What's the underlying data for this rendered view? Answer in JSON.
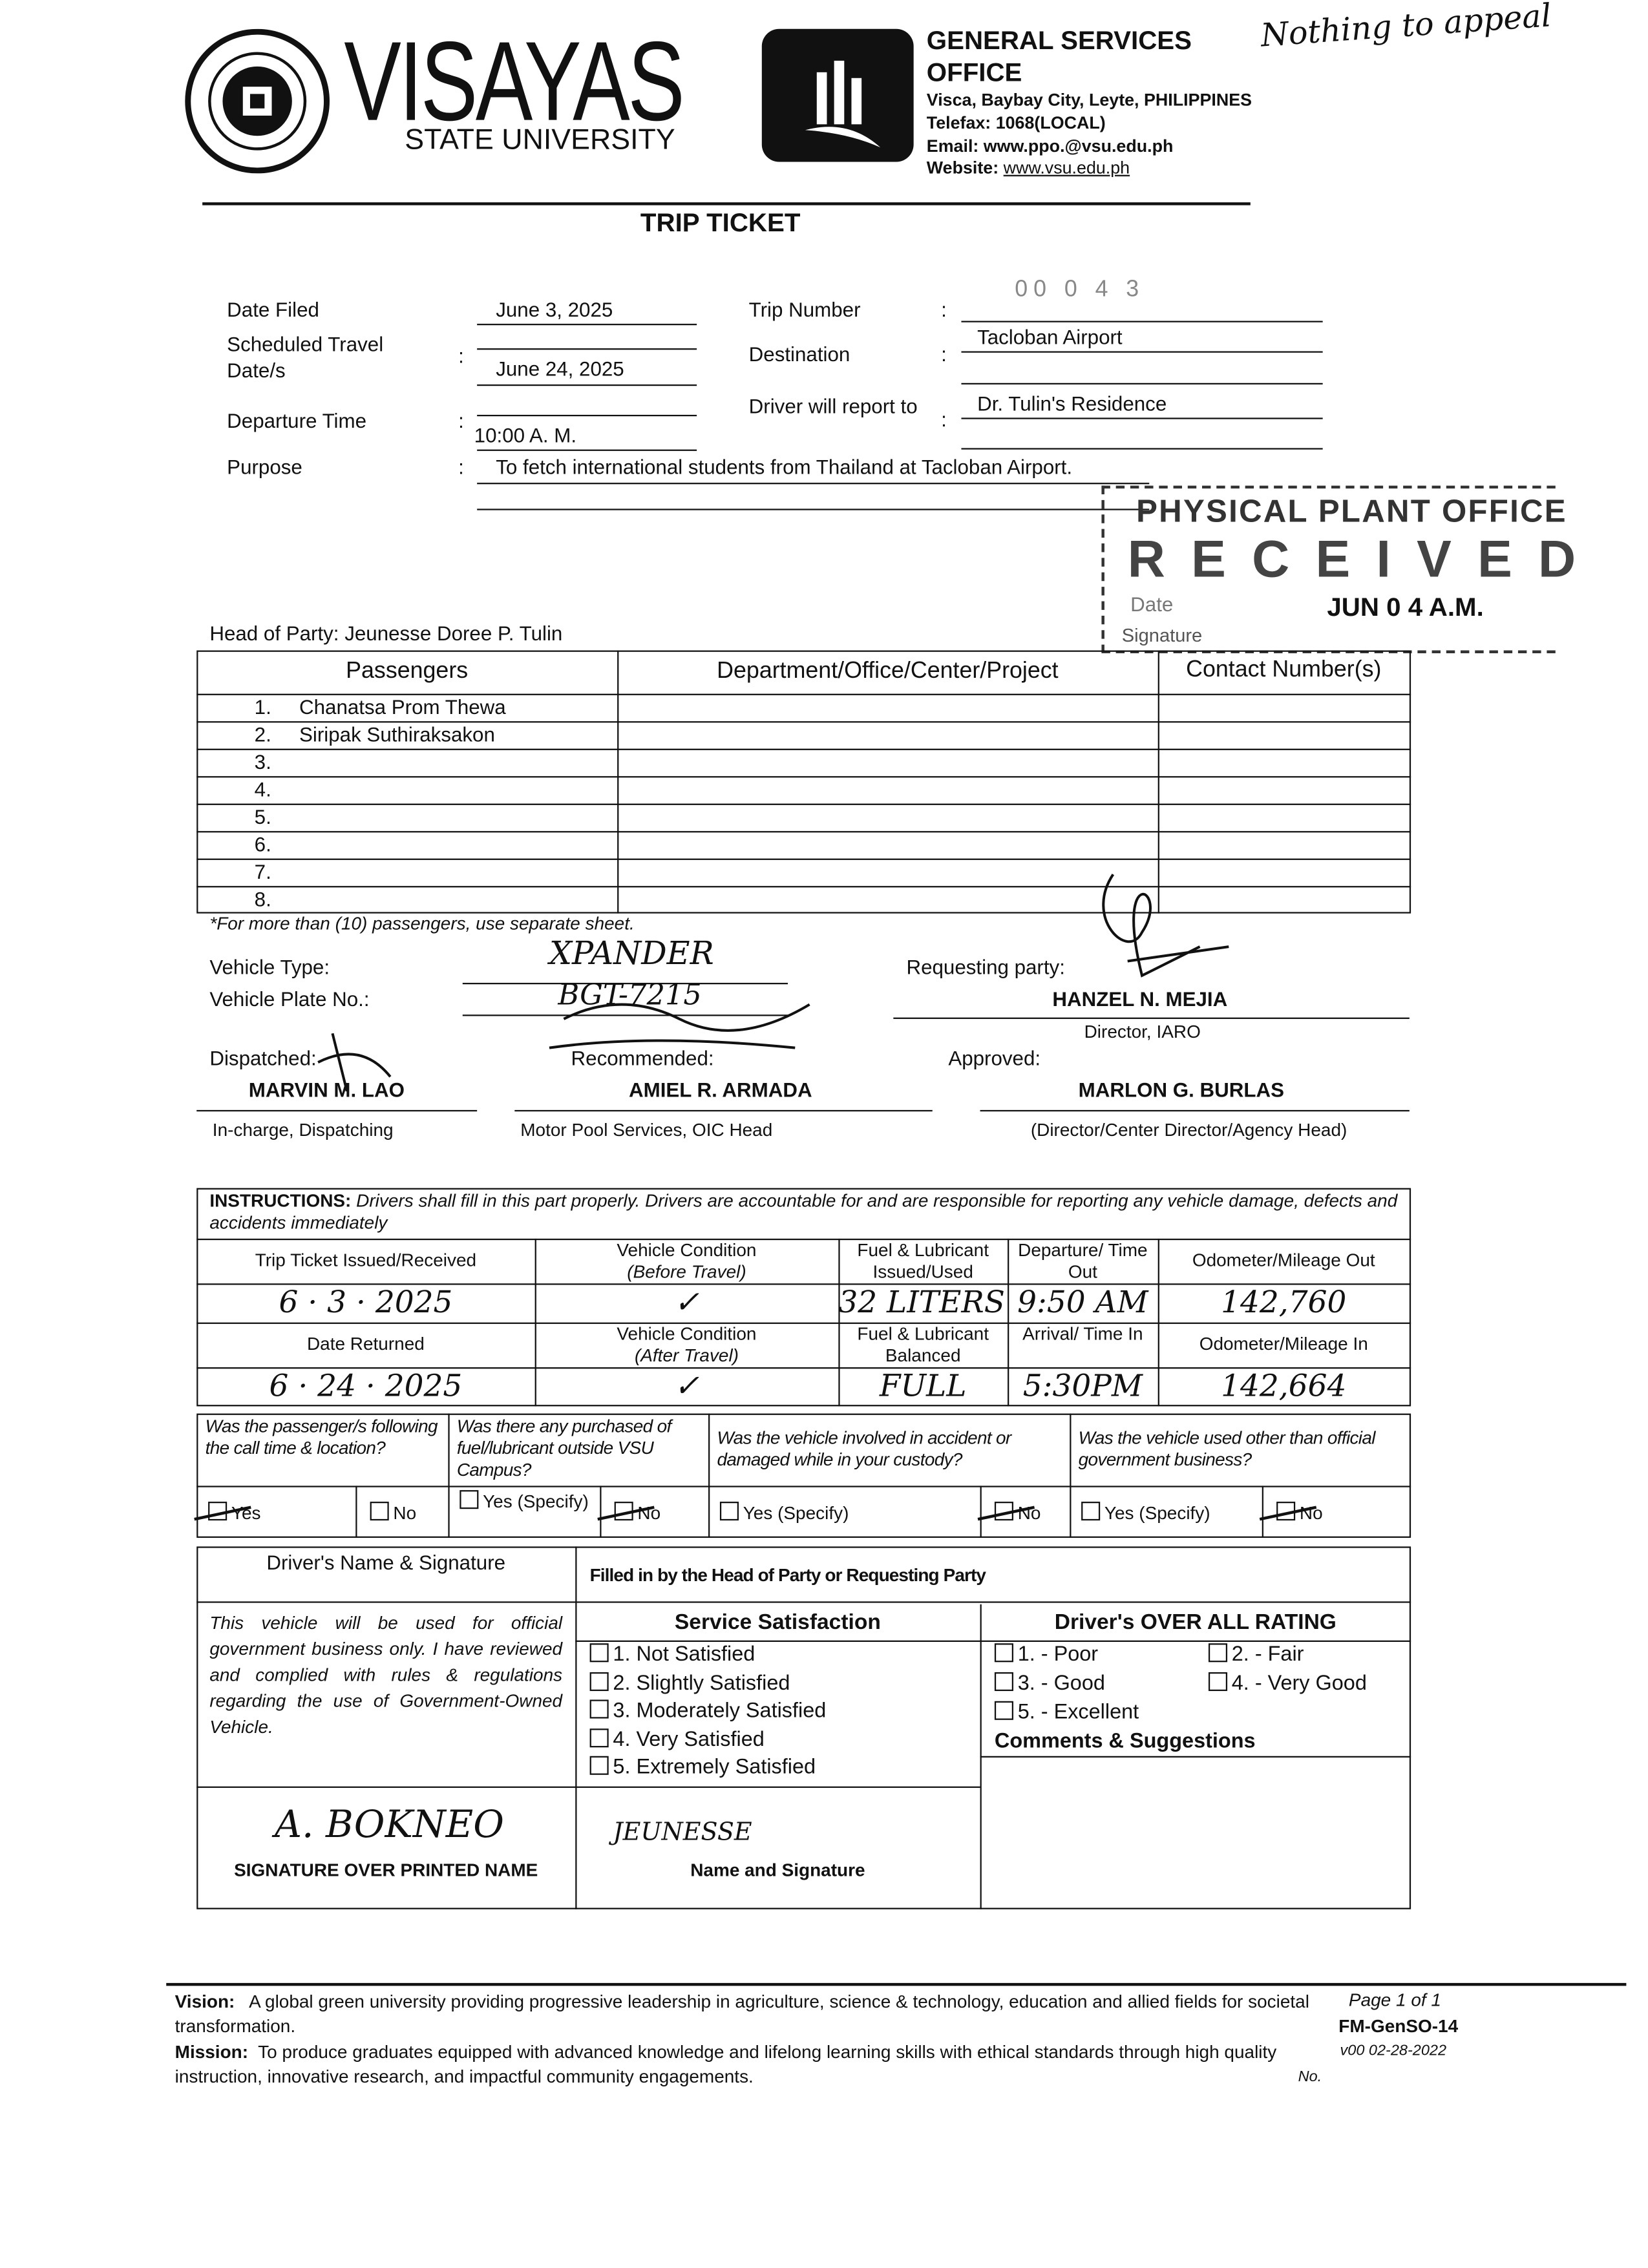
{
  "header": {
    "university_name": "VISAYAS",
    "university_sub": "STATE UNIVERSITY",
    "seal_text": "VISAYAS STATE UNIVERSITY",
    "office_line1": "GENERAL SERVICES",
    "office_line2": "OFFICE",
    "address": "Visca, Baybay City, Leyte, PHILIPPINES",
    "telefax": "Telefax: 1068(LOCAL)",
    "email": "Email: www.ppo.@vsu.edu.ph",
    "website_label": "Website:",
    "website": "www.vsu.edu.ph",
    "handwritten_note": "Nothing to appeal"
  },
  "title": "TRIP TICKET",
  "fields": {
    "date_filed_label": "Date Filed",
    "date_filed": "June 3, 2025",
    "travel_date_label": "Scheduled Travel Date/s",
    "travel_date": "June 24, 2025",
    "departure_label": "Departure Time",
    "departure": "10:00 A. M.",
    "purpose_label": "Purpose",
    "purpose": "To fetch international students from Thailand at Tacloban Airport.",
    "trip_number_label": "Trip Number",
    "trip_number": "00 0 4 3",
    "destination_label": "Destination",
    "destination": "Tacloban Airport",
    "report_label": "Driver will report to",
    "report_to": "Dr. Tulin's Residence",
    "colon": ":"
  },
  "stamp": {
    "office": "PHYSICAL PLANT OFFICE",
    "status": "RECEIVED",
    "date_label": "Date",
    "date": "JUN 0 4 A.M.",
    "signature_label": "Signature"
  },
  "head_of_party": "Head of Party:  Jeunesse Doree P. Tulin",
  "passengers": {
    "headers": [
      "Passengers",
      "Department/Office/Center/Project",
      "Contact Number(s)"
    ],
    "rows": [
      {
        "num": "1.",
        "name": "Chanatsa Prom Thewa"
      },
      {
        "num": "2.",
        "name": "Siripak Suthiraksakon"
      },
      {
        "num": "3.",
        "name": ""
      },
      {
        "num": "4.",
        "name": ""
      },
      {
        "num": "5.",
        "name": ""
      },
      {
        "num": "6.",
        "name": ""
      },
      {
        "num": "7.",
        "name": ""
      },
      {
        "num": "8.",
        "name": ""
      }
    ],
    "note": "*For more than (10) passengers, use separate sheet."
  },
  "vehicle": {
    "type_label": "Vehicle Type:",
    "type": "XPANDER",
    "plate_label": "Vehicle Plate No.:",
    "plate": "BGT-7215"
  },
  "signatories": {
    "requesting_label": "Requesting party:",
    "requesting_name": "HANZEL N. MEJIA",
    "requesting_title": "Director, IARO",
    "dispatched_label": "Dispatched:",
    "dispatched_name": "MARVIN M. LAO",
    "dispatched_title": "In-charge, Dispatching",
    "recommended_label": "Recommended:",
    "recommended_name": "AMIEL R. ARMADA",
    "recommended_title": "Motor Pool Services, OIC Head",
    "approved_label": "Approved:",
    "approved_name": "MARLON G. BURLAS",
    "approved_title": "(Director/Center Director/Agency Head)"
  },
  "instructions": {
    "label": "INSTRUCTIONS:",
    "text": "Drivers shall fill in this part properly.  Drivers are accountable for and are responsible for reporting any vehicle damage, defects and accidents immediately",
    "out_headers": [
      "Trip Ticket Issued/Received",
      "Vehicle Condition",
      "(Before Travel)",
      "Fuel & Lubricant Issued/Used",
      "Departure/ Time Out",
      "Odometer/Mileage Out"
    ],
    "out_values": [
      "6 · 3 · 2025",
      "✓",
      "32 LITERS 6.",
      "9:50 AM",
      "142,760"
    ],
    "in_headers": [
      "Date Returned",
      "Vehicle Condition",
      "(After Travel)",
      "Fuel & Lubricant Balanced",
      "Arrival/ Time In",
      "Odometer/Mileage In"
    ],
    "in_values": [
      "6 · 24 · 2025",
      "✓",
      "FULL",
      "5:30PM",
      "142,664"
    ]
  },
  "questions": [
    {
      "q": "Was the passenger/s following the call time & location?",
      "yes": "Yes",
      "no": "No",
      "answer": "yes"
    },
    {
      "q": "Was there any purchased of fuel/lubricant outside VSU Campus?",
      "yes": "Yes (Specify)",
      "no": "No",
      "answer": "no"
    },
    {
      "q": "Was the vehicle involved in accident or damaged while in your custody?",
      "yes": "Yes (Specify)",
      "no": "No",
      "answer": "no"
    },
    {
      "q": "Was the vehicle used other than official government business?",
      "yes": "Yes (Specify)",
      "no": "No",
      "answer": "no"
    }
  ],
  "evaluation": {
    "driver_header": "Driver's Name & Signature",
    "filled_by": "Filled in by the Head of Party or Requesting Party",
    "driver_statement": "This vehicle will be used for official government business only. I have reviewed and complied with rules & regulations regarding the use of Government-Owned Vehicle.",
    "driver_signature": "A. BOKNEO",
    "signature_label": "SIGNATURE OVER PRINTED NAME",
    "service_header": "Service Satisfaction",
    "service_options": [
      "1.  Not Satisfied",
      "2.  Slightly Satisfied",
      "3.  Moderately Satisfied",
      "4.  Very Satisfied",
      "5.  Extremely Satisfied"
    ],
    "rating_header": "Driver's OVER ALL RATING",
    "rating_options": [
      "1. - Poor",
      "2. - Fair",
      "3. - Good",
      "4. - Very Good",
      "5. - Excellent"
    ],
    "comments_header": "Comments & Suggestions",
    "requester_signature": "JEUNESSE",
    "name_signature_label": "Name and Signature"
  },
  "footer": {
    "vision_label": "Vision:",
    "vision": "A global green university providing progressive leadership in agriculture, science & technology, education and allied fields for societal transformation.",
    "mission_label": "Mission:",
    "mission": "To produce graduates equipped with advanced knowledge and lifelong learning skills with ethical standards through high quality instruction, innovative research, and impactful community engagements.",
    "page": "Page 1 of 1",
    "form_code": "FM-GenSO-14",
    "version": "v00 02-28-2022",
    "no_label": "No."
  }
}
